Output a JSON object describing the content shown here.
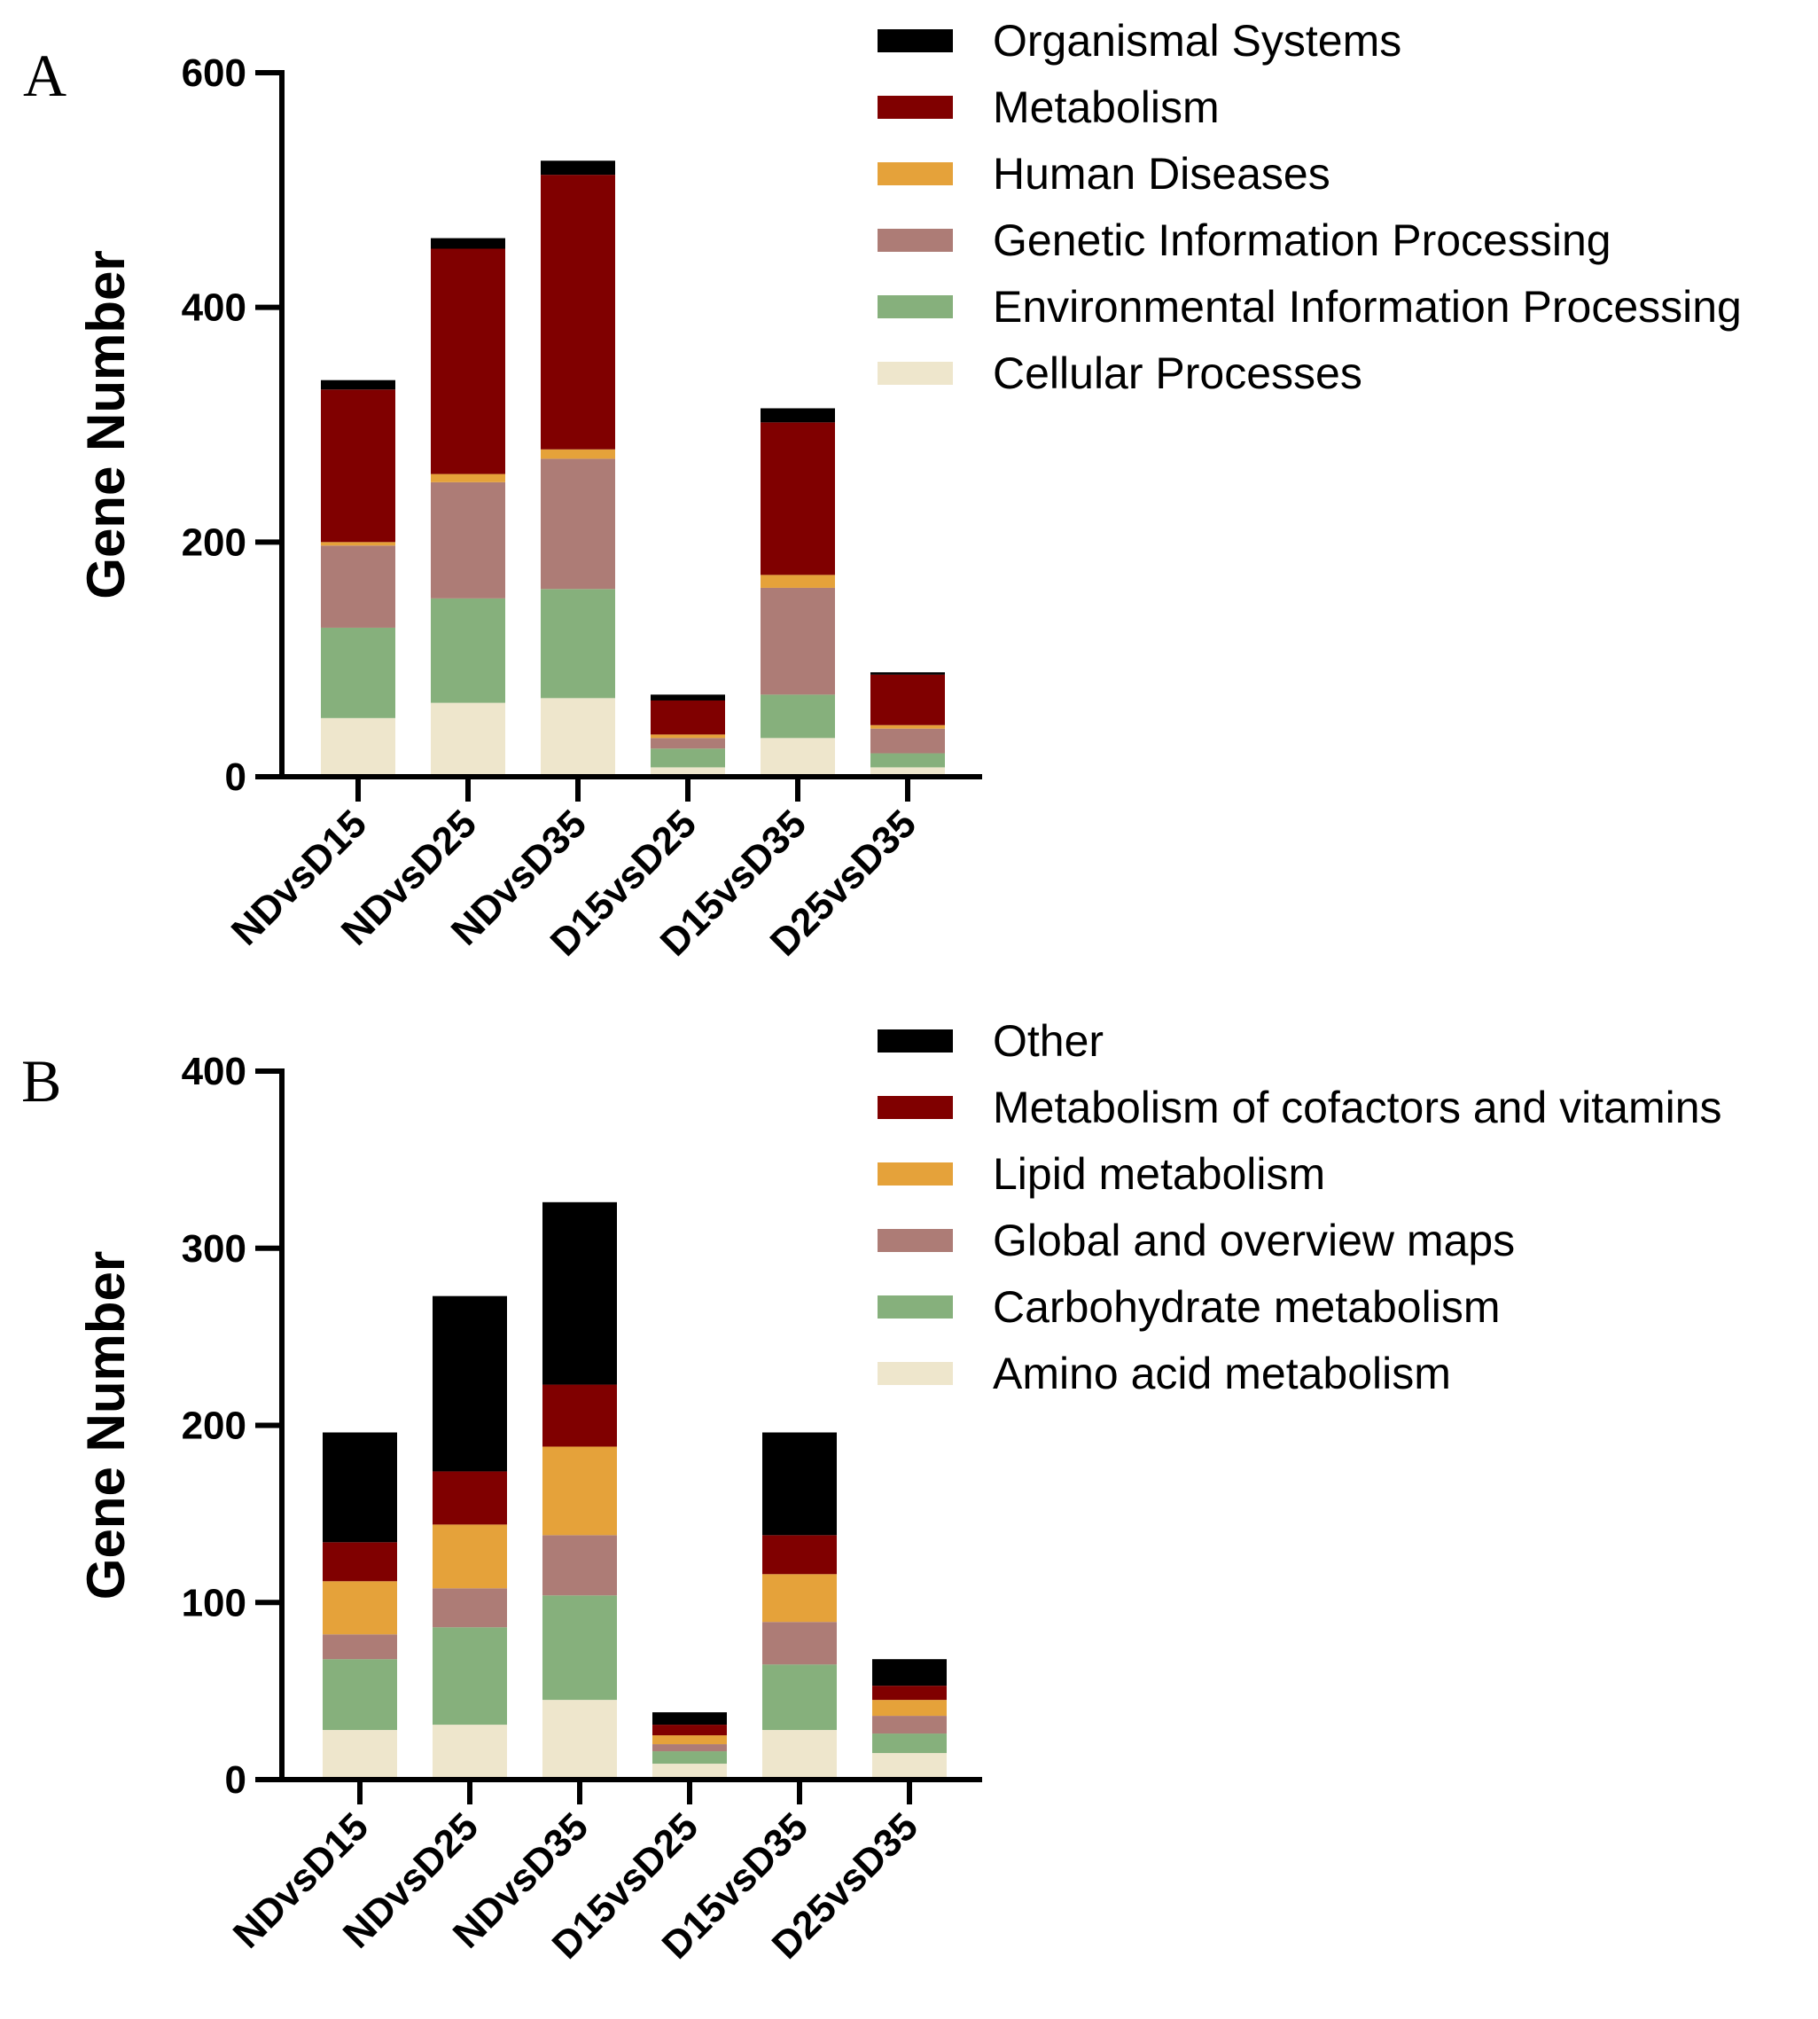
{
  "chart_data": [
    {
      "type": "bar",
      "stacked": true,
      "panel_label": "A",
      "title": "",
      "xlabel": "",
      "ylabel": "Gene Number",
      "ylim": [
        0,
        600
      ],
      "yticks": [
        "0",
        "200",
        "400",
        "600"
      ],
      "categories": [
        "NDvsD15",
        "NDvsD25",
        "NDvsD35",
        "D15vsD25",
        "D15vsD35",
        "D25vsD35"
      ],
      "series": [
        {
          "name": "Cellular Processes",
          "color": "#EEE6CC",
          "values": [
            50,
            63,
            67,
            8,
            33,
            8
          ]
        },
        {
          "name": "Environmental Information Processing",
          "color": "#86B07C",
          "values": [
            77,
            89,
            93,
            16,
            37,
            12
          ]
        },
        {
          "name": "Genetic Information Processing",
          "color": "#AD7C76",
          "values": [
            70,
            99,
            111,
            9,
            91,
            21
          ]
        },
        {
          "name": "Human Diseases",
          "color": "#E5A23A",
          "values": [
            3,
            7,
            8,
            3,
            11,
            3
          ]
        },
        {
          "name": "Metabolism",
          "color": "#800000",
          "values": [
            130,
            192,
            234,
            29,
            130,
            43
          ]
        },
        {
          "name": "Organismal Systems",
          "color": "#000000",
          "values": [
            8,
            9,
            12,
            5,
            12,
            2
          ]
        }
      ],
      "legend_order": [
        "Organismal Systems",
        "Metabolism",
        "Human Diseases",
        "Genetic Information Processing",
        "Environmental Information Processing",
        "Cellular Processes"
      ]
    },
    {
      "type": "bar",
      "stacked": true,
      "panel_label": "B",
      "title": "",
      "xlabel": "",
      "ylabel": "Gene Number",
      "ylim": [
        0,
        400
      ],
      "yticks": [
        "0",
        "100",
        "200",
        "300",
        "400"
      ],
      "categories": [
        "NDvsD15",
        "NDvsD25",
        "NDvsD35",
        "D15vsD25",
        "D15vsD35",
        "D25vsD35"
      ],
      "series": [
        {
          "name": "Amino acid metabolism",
          "color": "#EEE6CC",
          "values": [
            28,
            31,
            45,
            9,
            28,
            15
          ]
        },
        {
          "name": "Carbohydrate metabolism",
          "color": "#86B07C",
          "values": [
            40,
            55,
            59,
            7,
            37,
            11
          ]
        },
        {
          "name": "Global and overview maps",
          "color": "#AD7C76",
          "values": [
            14,
            22,
            34,
            4,
            24,
            10
          ]
        },
        {
          "name": "Lipid metabolism",
          "color": "#E5A23A",
          "values": [
            30,
            36,
            50,
            5,
            27,
            9
          ]
        },
        {
          "name": "Metabolism of cofactors and vitamins",
          "color": "#800000",
          "values": [
            22,
            30,
            35,
            6,
            22,
            8
          ]
        },
        {
          "name": "Other",
          "color": "#000000",
          "values": [
            62,
            99,
            103,
            7,
            58,
            15
          ]
        }
      ],
      "legend_order": [
        "Other",
        "Metabolism of cofactors and vitamins",
        "Lipid metabolism",
        "Global and overview maps",
        "Carbohydrate metabolism",
        "Amino acid metabolism"
      ]
    }
  ]
}
